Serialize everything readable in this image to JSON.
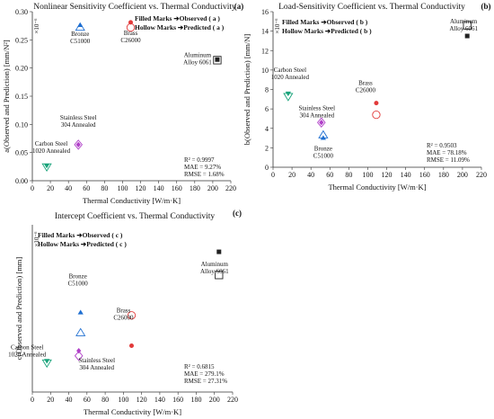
{
  "chart_data": [
    {
      "type": "scatter",
      "panel": "(a)",
      "title": "Nonlinear Sensitivity Coefficient vs. Thermal Conductivity",
      "xlabel": "Thermal Conductivity [W/m·K]",
      "ylabel": "a(Observed and Prediction) [mm/N²]",
      "exponent": "×10⁻⁶",
      "xlim": [
        0,
        220
      ],
      "ylim": [
        0,
        0.3
      ],
      "xticks": [
        "0",
        "20",
        "40",
        "60",
        "80",
        "100",
        "120",
        "140",
        "160",
        "180",
        "200",
        "220"
      ],
      "yticks": [
        "0.00",
        "0.05",
        "0.10",
        "0.15",
        "0.20",
        "0.25",
        "0.30"
      ],
      "legend": [
        "Filled Marks ➔Observed ( a )",
        "Hollow Marks ➔Predicted ( a )"
      ],
      "stats": [
        "R² = 0.9997",
        "MAE = 9.27%",
        "RMSE = 1.68%"
      ],
      "points": [
        {
          "material": [
            "Bronze",
            "C51000"
          ],
          "x": 53,
          "observed": 0.276,
          "predicted": 0.272,
          "shape": "triangle",
          "color": "#1f6fd1"
        },
        {
          "material": [
            "Brass",
            "C26000"
          ],
          "x": 109,
          "observed": 0.281,
          "predicted": 0.272,
          "shape": "circle",
          "color": "#e23b3b"
        },
        {
          "material": [
            "Aluminum",
            "Alloy 6061"
          ],
          "x": 205,
          "observed": 0.215,
          "predicted": 0.214,
          "shape": "square",
          "color": "#222222"
        },
        {
          "material": [
            "Stainless Steel",
            "304 Annealed"
          ],
          "x": 51,
          "observed": 0.064,
          "predicted": 0.064,
          "shape": "diamond",
          "color": "#b040c8"
        },
        {
          "material": [
            "Carbon Steel",
            "1020 Annealed"
          ],
          "x": 16,
          "observed": 0.027,
          "predicted": 0.025,
          "shape": "triangle-down",
          "color": "#18a37a"
        }
      ]
    },
    {
      "type": "scatter",
      "panel": "(b)",
      "title": "Load-Sensitivity Coefficient vs. Thermal Conductivity",
      "xlabel": "Thermal Conductivity [W/m·K]",
      "ylabel": "b(Observed and Prediction) [mm/N]",
      "exponent": "×10⁻⁶",
      "xlim": [
        0,
        220
      ],
      "ylim": [
        0,
        16
      ],
      "xticks": [
        "0",
        "20",
        "40",
        "60",
        "80",
        "100",
        "120",
        "140",
        "160",
        "180",
        "200",
        "220"
      ],
      "yticks": [
        "0",
        "2",
        "4",
        "6",
        "8",
        "10",
        "12",
        "14",
        "16"
      ],
      "legend": [
        "Filled Marks ➔Observed ( b )",
        "Hollow Marks ➔Predicted ( b )"
      ],
      "stats": [
        "R² = 0.9503",
        "MAE = 78.18%",
        "RMSE = 11.09%"
      ],
      "points": [
        {
          "material": [
            "Aluminum",
            "Alloy 6061"
          ],
          "x": 205,
          "observed": 13.5,
          "predicted": 14.6,
          "shape": "square",
          "color": "#222222"
        },
        {
          "material": [
            "Carbon Steel",
            "1020 Annealed"
          ],
          "x": 16,
          "observed": 7.6,
          "predicted": 7.3,
          "shape": "triangle-down",
          "color": "#18a37a"
        },
        {
          "material": [
            "Brass",
            "C26000"
          ],
          "x": 109,
          "observed": 6.6,
          "predicted": 5.4,
          "shape": "circle",
          "color": "#e23b3b"
        },
        {
          "material": [
            "Stainless Steel",
            "304 Annealed"
          ],
          "x": 51,
          "observed": 4.6,
          "predicted": 4.6,
          "shape": "diamond",
          "color": "#b040c8"
        },
        {
          "material": [
            "Bronze",
            "C51000"
          ],
          "x": 53,
          "observed": 3.0,
          "predicted": 3.3,
          "shape": "triangle",
          "color": "#1f6fd1"
        }
      ]
    },
    {
      "type": "scatter",
      "panel": "(c)",
      "title": "Intercept Coefficient vs. Thermal Conductivity",
      "xlabel": "Thermal Conductivity [W/m·K]",
      "ylabel": "c(Observed and Prediction) [mm]",
      "exponent": "×10⁻⁶",
      "xlim": [
        0,
        220
      ],
      "ylim": [
        0,
        600
      ],
      "xticks": [
        "0",
        "20",
        "40",
        "60",
        "80",
        "100",
        "120",
        "140",
        "160",
        "180",
        "200",
        "220"
      ],
      "yticks": [],
      "legend": [
        "Filled Marks ➔Observed ( c )",
        "Hollow Marks ➔Predicted ( c )"
      ],
      "stats": [
        "R² = 0.6815",
        "MAE = 279.1%",
        "RMSE = 27.31%"
      ],
      "points": [
        {
          "material": [
            "Aluminum",
            "Alloy 6061"
          ],
          "x": 205,
          "observed": 503,
          "predicted": 420,
          "shape": "square",
          "color": "#222222"
        },
        {
          "material": [
            "Bronze",
            "C51000"
          ],
          "x": 53,
          "observed": 285,
          "predicted": 212,
          "shape": "triangle",
          "color": "#1f6fd1"
        },
        {
          "material": [
            "Brass",
            "C26000"
          ],
          "x": 109,
          "observed": 166,
          "predicted": 275,
          "shape": "circle",
          "color": "#e23b3b"
        },
        {
          "material": [
            "Stainless Steel",
            "304 Annealed"
          ],
          "x": 51,
          "observed": 148,
          "predicted": 130,
          "shape": "diamond",
          "color": "#b040c8"
        },
        {
          "material": [
            "Carbon Steel",
            "1020 Annealed"
          ],
          "x": 16,
          "observed": 112,
          "predicted": 105,
          "shape": "triangle-down",
          "color": "#18a37a"
        }
      ]
    }
  ]
}
